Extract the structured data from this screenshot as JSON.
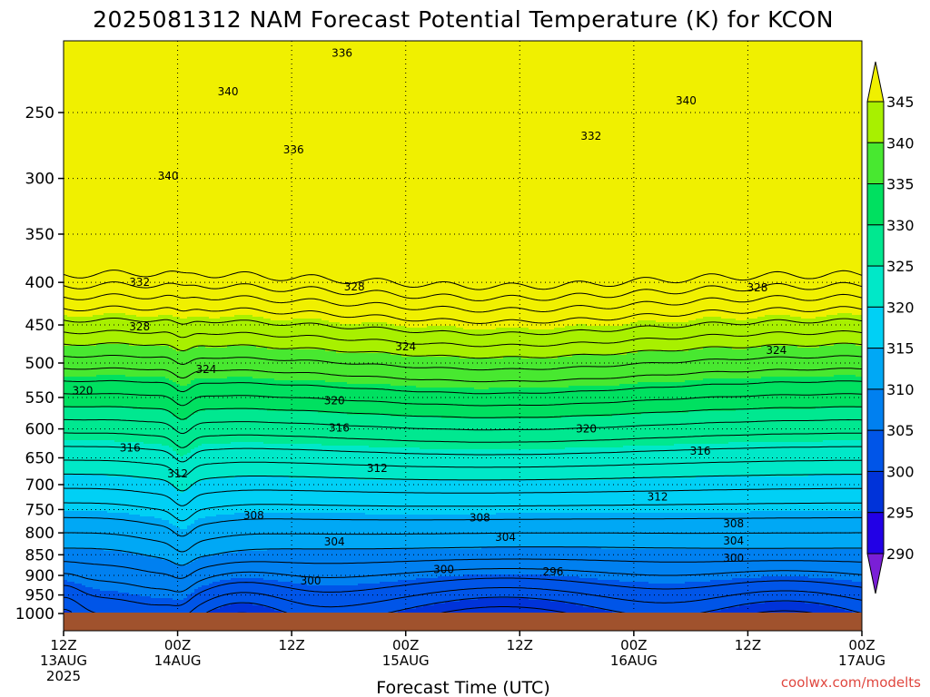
{
  "title": "2025081312 NAM Forecast Potential Temperature (K) for KCON",
  "xlabel": "Forecast Time (UTC)",
  "credit": "coolwx.com/modelts",
  "colors": {
    "ground": "#a0522d",
    "bands": [
      "#7a1fd6",
      "#2200e6",
      "#0033d9",
      "#0055e8",
      "#0080f0",
      "#00a8f5",
      "#00d0f5",
      "#00e8c8",
      "#00e890",
      "#00e060",
      "#48e830",
      "#a8f000",
      "#f0f000"
    ]
  },
  "chart_data": {
    "type": "contour",
    "title": "2025081312 NAM Forecast Potential Temperature (K) for KCON",
    "xlabel": "Forecast Time (UTC)",
    "ylabel": "",
    "y_scale": "log-pressure",
    "y_axis_units": "hPa",
    "ylim": [
      1000,
      200
    ],
    "y_ticks": [
      {
        "value": 250,
        "label": "250"
      },
      {
        "value": 300,
        "label": "300"
      },
      {
        "value": 350,
        "label": "350"
      },
      {
        "value": 400,
        "label": "400"
      },
      {
        "value": 450,
        "label": "450"
      },
      {
        "value": 500,
        "label": "500"
      },
      {
        "value": 550,
        "label": "550"
      },
      {
        "value": 600,
        "label": "600"
      },
      {
        "value": 650,
        "label": "650"
      },
      {
        "value": 700,
        "label": "700"
      },
      {
        "value": 750,
        "label": "750"
      },
      {
        "value": 800,
        "label": "800"
      },
      {
        "value": 850,
        "label": "850"
      },
      {
        "value": 900,
        "label": "900"
      },
      {
        "value": 950,
        "label": "950"
      },
      {
        "value": 1000,
        "label": "1000"
      }
    ],
    "x_ticks": [
      {
        "hour": 0,
        "lines": [
          "12Z",
          "13AUG",
          "2025"
        ]
      },
      {
        "hour": 12,
        "lines": [
          "00Z",
          "14AUG"
        ]
      },
      {
        "hour": 24,
        "lines": [
          "12Z"
        ]
      },
      {
        "hour": 36,
        "lines": [
          "00Z",
          "15AUG"
        ]
      },
      {
        "hour": 48,
        "lines": [
          "12Z"
        ]
      },
      {
        "hour": 60,
        "lines": [
          "00Z",
          "16AUG"
        ]
      },
      {
        "hour": 72,
        "lines": [
          "12Z"
        ]
      },
      {
        "hour": 84,
        "lines": [
          "00Z",
          "17AUG"
        ]
      }
    ],
    "grid": true,
    "colorbar": {
      "placement": "right",
      "levels": [
        290,
        295,
        300,
        305,
        310,
        315,
        320,
        325,
        330,
        335,
        340,
        345
      ],
      "tick_labels": [
        "290",
        "295",
        "300",
        "305",
        "310",
        "315",
        "320",
        "325",
        "330",
        "335",
        "340",
        "345"
      ]
    },
    "contour_interval": 2,
    "contour_labels": [
      {
        "hour": 29.3,
        "p": 212,
        "text": "336"
      },
      {
        "hour": 17.3,
        "p": 236,
        "text": "340"
      },
      {
        "hour": 65.5,
        "p": 242,
        "text": "340"
      },
      {
        "hour": 55.5,
        "p": 267,
        "text": "332"
      },
      {
        "hour": 24.2,
        "p": 277,
        "text": "336"
      },
      {
        "hour": 11.0,
        "p": 298,
        "text": "340"
      },
      {
        "hour": 8.0,
        "p": 400,
        "text": "332"
      },
      {
        "hour": 30.6,
        "p": 405,
        "text": "328"
      },
      {
        "hour": 73.0,
        "p": 406,
        "text": "328"
      },
      {
        "hour": 8.0,
        "p": 452,
        "text": "328"
      },
      {
        "hour": 36.0,
        "p": 478,
        "text": "324"
      },
      {
        "hour": 75.0,
        "p": 483,
        "text": "324"
      },
      {
        "hour": 15.0,
        "p": 509,
        "text": "324"
      },
      {
        "hour": 2.0,
        "p": 540,
        "text": "320"
      },
      {
        "hour": 28.5,
        "p": 555,
        "text": "320"
      },
      {
        "hour": 55.0,
        "p": 600,
        "text": "320"
      },
      {
        "hour": 29.0,
        "p": 598,
        "text": "316"
      },
      {
        "hour": 7.0,
        "p": 632,
        "text": "316"
      },
      {
        "hour": 67.0,
        "p": 638,
        "text": "316"
      },
      {
        "hour": 33.0,
        "p": 669,
        "text": "312"
      },
      {
        "hour": 12.0,
        "p": 679,
        "text": "312"
      },
      {
        "hour": 62.5,
        "p": 724,
        "text": "312"
      },
      {
        "hour": 20.0,
        "p": 762,
        "text": "308"
      },
      {
        "hour": 43.8,
        "p": 767,
        "text": "308"
      },
      {
        "hour": 70.5,
        "p": 780,
        "text": "308"
      },
      {
        "hour": 28.5,
        "p": 820,
        "text": "304"
      },
      {
        "hour": 46.5,
        "p": 810,
        "text": "304"
      },
      {
        "hour": 70.5,
        "p": 818,
        "text": "304"
      },
      {
        "hour": 70.5,
        "p": 858,
        "text": "300"
      },
      {
        "hour": 26.0,
        "p": 913,
        "text": "300"
      },
      {
        "hour": 40.0,
        "p": 885,
        "text": "300"
      },
      {
        "hour": 51.5,
        "p": 891,
        "text": "296"
      }
    ]
  }
}
